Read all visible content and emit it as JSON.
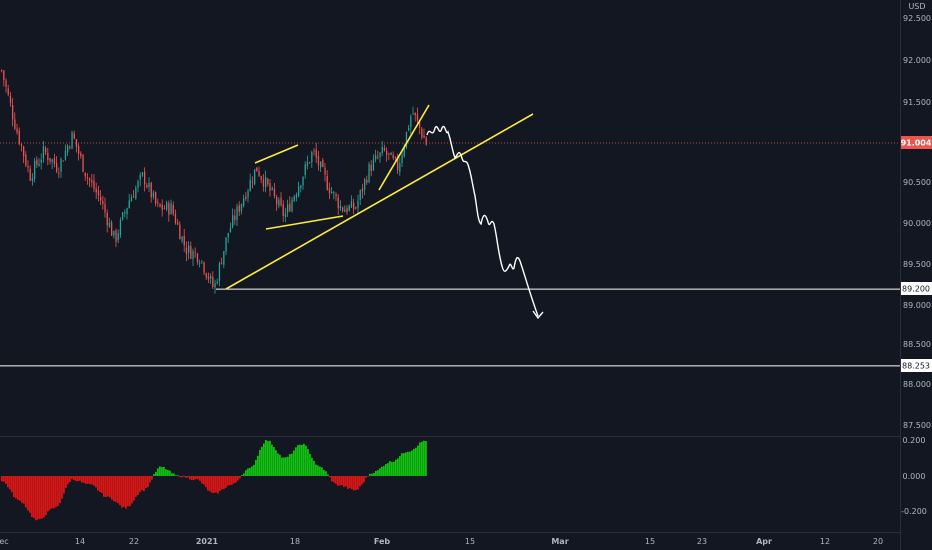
{
  "currency_label": "USD",
  "colors": {
    "background": "#131722",
    "up": "#26a69a",
    "down": "#ef5350",
    "price_line": "#ef5350",
    "trendline": "#ffeb3b",
    "drawing": "#ffffff",
    "hist_pos": "#11c011",
    "hist_neg": "#d81616",
    "axis_text": "#b2b5be"
  },
  "chart_data": [
    {
      "type": "candlestick",
      "title": "",
      "y_axis": {
        "labels": [
          "92.500",
          "92.000",
          "91.500",
          "91.000",
          "90.500",
          "90.000",
          "89.500",
          "89.000",
          "88.500",
          "88.000",
          "87.500"
        ],
        "ylim": [
          87.4,
          92.8
        ]
      },
      "x_axis": {
        "labels": [
          "ec",
          "14",
          "22",
          "2021",
          "18",
          "Feb",
          "15",
          "Mar",
          "15",
          "23",
          "Apr",
          "12",
          "20"
        ]
      },
      "last_price": "91.004",
      "horizontal_levels": [
        {
          "price": 89.2,
          "label": "89.200"
        },
        {
          "price": 88.253,
          "label": "88.253"
        }
      ],
      "series": [
        {
          "name": "price",
          "anchor_closes": [
            91.9,
            91.2,
            90.6,
            90.9,
            90.7,
            91.1,
            90.6,
            90.3,
            89.8,
            90.3,
            90.6,
            90.2,
            90.2,
            89.7,
            89.6,
            89.2,
            89.9,
            90.3,
            90.7,
            90.4,
            90.1,
            90.5,
            90.9,
            90.5,
            90.2,
            90.2,
            90.7,
            90.9,
            90.7,
            91.4,
            91.0
          ]
        }
      ],
      "annotations": [
        {
          "kind": "trendline",
          "from": [
            "Jan 6",
            89.2
          ],
          "to": [
            "Feb 12",
            91.35
          ]
        },
        {
          "kind": "trendline",
          "from": [
            "Jan 12",
            90.62
          ],
          "to": [
            "Jan 17",
            90.98
          ]
        },
        {
          "kind": "trendline",
          "from": [
            "Jan 13",
            89.96
          ],
          "to": [
            "Jan 28",
            90.08
          ]
        },
        {
          "kind": "trendline",
          "from": [
            "Jan 31",
            90.4
          ],
          "to": [
            "Feb 5",
            91.45
          ]
        },
        {
          "kind": "projection_arrow",
          "from": [
            "Feb 5",
            91.1
          ],
          "to": [
            "Feb 26",
            88.9
          ]
        }
      ]
    },
    {
      "type": "histogram",
      "title": "",
      "y_axis": {
        "labels": [
          "0.200",
          "0.000",
          "-0.200"
        ],
        "ylim": [
          -0.3,
          0.21
        ]
      },
      "series": [
        {
          "name": "oscillator",
          "anchors": [
            -0.03,
            -0.14,
            -0.25,
            -0.18,
            -0.02,
            -0.05,
            -0.12,
            -0.18,
            -0.08,
            0.05,
            0.0,
            -0.02,
            -0.1,
            -0.05,
            0.04,
            0.2,
            0.1,
            0.18,
            0.05,
            -0.05,
            -0.08,
            0.02,
            0.08,
            0.14,
            0.2
          ]
        }
      ]
    }
  ]
}
